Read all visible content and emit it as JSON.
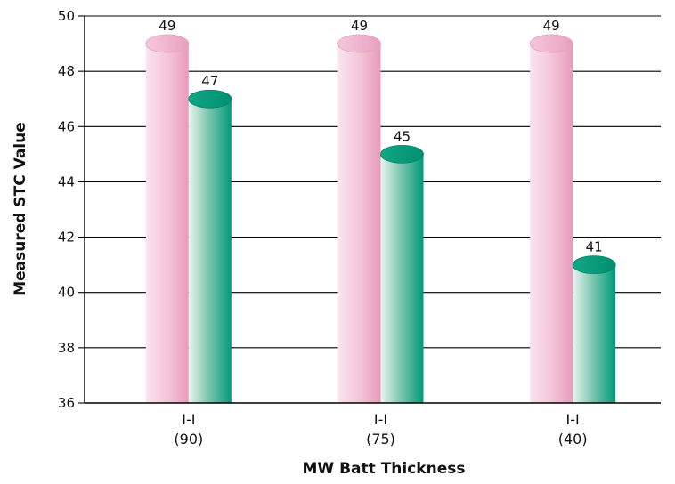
{
  "chart_data": {
    "type": "bar",
    "xlabel": "MW Batt Thickness",
    "ylabel": "Measured STC Value",
    "ylim": [
      36,
      50
    ],
    "yticks": [
      36,
      38,
      40,
      42,
      44,
      46,
      48,
      50
    ],
    "grid": true,
    "categories": [
      {
        "line1": "I-I",
        "line2": "(90)"
      },
      {
        "line1": "I-I",
        "line2": "(75)"
      },
      {
        "line1": "I-I",
        "line2": "(40)"
      }
    ],
    "series": [
      {
        "values": [
          49,
          49,
          49
        ],
        "color": "#e9a6c3"
      },
      {
        "values": [
          47,
          45,
          41
        ],
        "color": "#009a7a"
      }
    ]
  }
}
